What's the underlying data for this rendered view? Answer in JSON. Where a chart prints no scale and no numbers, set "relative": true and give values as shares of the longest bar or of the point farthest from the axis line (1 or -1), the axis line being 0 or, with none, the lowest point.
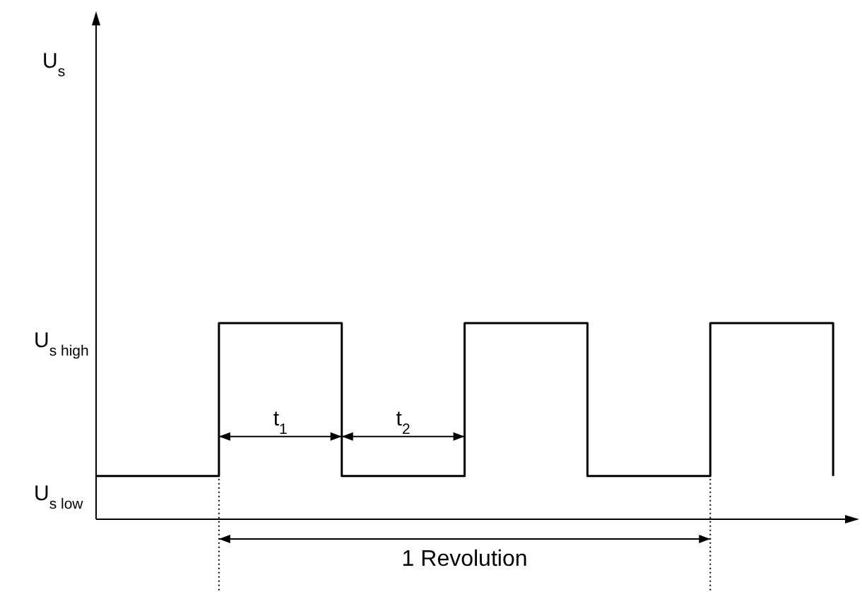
{
  "chart_data": {
    "type": "step",
    "relative": true,
    "color": "#000000",
    "categories": [
      null,
      null,
      null,
      null,
      null,
      null,
      null
    ],
    "values": [
      0.22,
      1,
      0.22,
      1,
      0.22,
      1,
      0.22
    ],
    "annotations": [
      "U$_{s}$",
      "U$_{s high}$",
      "U$_{s low}$",
      "t$_{1}$",
      "t$_{2}$",
      "1 Revolution"
    ],
    "grid": false,
    "legend": false
  }
}
